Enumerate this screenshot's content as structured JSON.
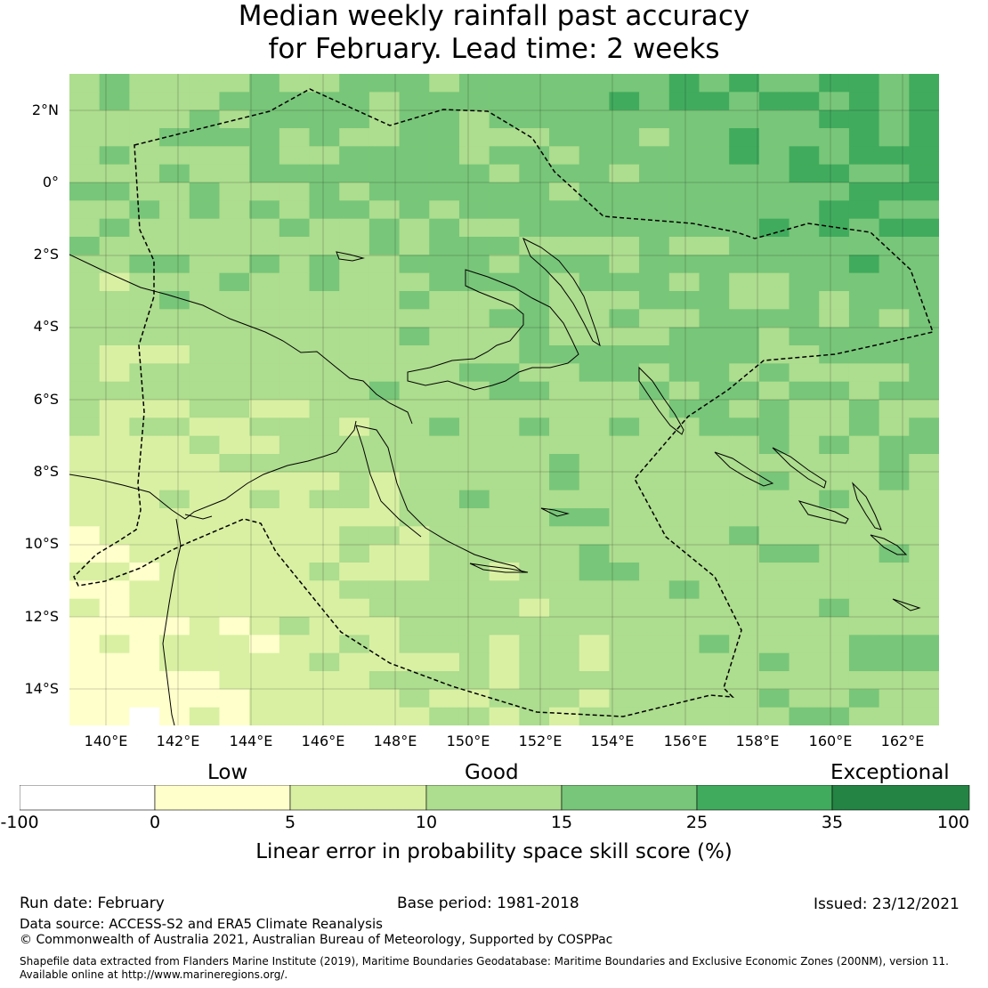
{
  "title": {
    "line1": "Median weekly rainfall past accuracy",
    "line2": "for February. Lead time: 2 weeks"
  },
  "map": {
    "lat_labels": [
      "2°N",
      "0°",
      "2°S",
      "4°S",
      "6°S",
      "8°S",
      "10°S",
      "12°S",
      "14°S"
    ],
    "lon_labels": [
      "140°E",
      "142°E",
      "144°E",
      "146°E",
      "148°E",
      "150°E",
      "152°E",
      "154°E",
      "156°E",
      "158°E",
      "160°E",
      "162°E"
    ],
    "lon_range": [
      139,
      163
    ],
    "lat_range": [
      -15,
      3
    ],
    "region": "Papua New Guinea"
  },
  "colorbar": {
    "categories": [
      "Low",
      "Good",
      "Exceptional"
    ],
    "ticks": [
      "-100",
      "0",
      "5",
      "10",
      "15",
      "25",
      "35",
      "100"
    ],
    "colors": [
      "#ffffff",
      "#ffffcc",
      "#d9f0a3",
      "#addd8e",
      "#78c679",
      "#41ab5d",
      "#238443"
    ],
    "label": "Linear error in probability space skill score (%)"
  },
  "footer": {
    "run_date": "Run date: February",
    "base_period": "Base period: 1981-2018",
    "issued": "Issued: 23/12/2021",
    "data_source": "Data source: ACCESS-S2 and ERA5 Climate Reanalysis",
    "copyright": "© Commonwealth of Australia 2021, Australian Bureau of Meteorology, Supported by COSPPac",
    "shapefile1": "Shapefile data extracted from Flanders Marine Institute (2019), Maritime Boundaries Geodatabase: Maritime Boundaries and Exclusive Economic Zones (200NM), version 11.",
    "shapefile2": "Available online at http://www.marineregions.org/."
  }
}
